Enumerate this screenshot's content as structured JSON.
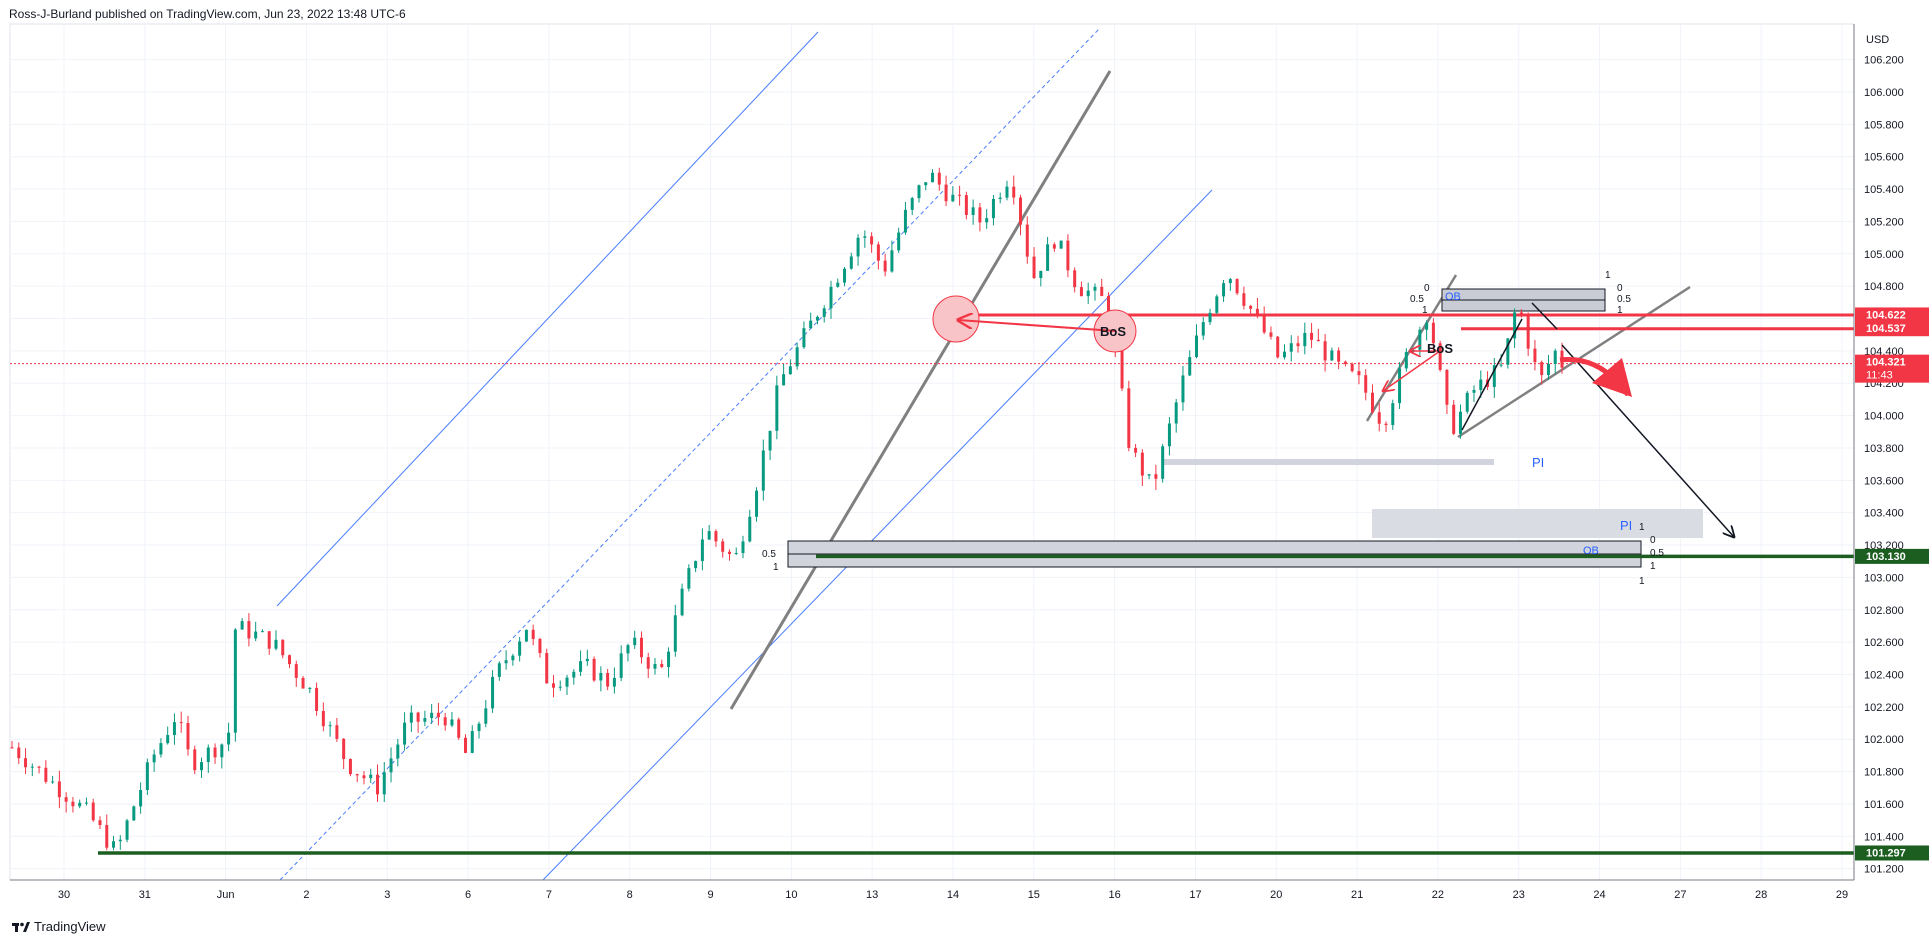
{
  "header": {
    "publish_line": "Ross-J-Burland published on TradingView.com, Jun 23, 2022 13:48 UTC-6"
  },
  "footer": {
    "brand": "TradingView",
    "logo_icon": "tradingview-logo-icon"
  },
  "colors": {
    "up": "#089981",
    "down": "#f23645",
    "resistance": "#f23645",
    "support": "#1b5e20",
    "channel": "#4a7dff",
    "trend": "#808080",
    "zone": "#d1d4dc"
  },
  "chart_data": {
    "type": "candlestick",
    "currency_label": "USD",
    "ylim": [
      101.13,
      106.42
    ],
    "y_ticks": [
      "106.200",
      "106.000",
      "105.800",
      "105.600",
      "105.400",
      "105.200",
      "105.000",
      "104.800",
      "104.600",
      "104.400",
      "104.200",
      "104.000",
      "103.800",
      "103.600",
      "103.400",
      "103.200",
      "103.000",
      "102.800",
      "102.600",
      "102.400",
      "102.200",
      "102.000",
      "101.800",
      "101.600",
      "101.400",
      "101.200"
    ],
    "x_ticks": [
      "30",
      "31",
      "Jun",
      "2",
      "3",
      "6",
      "7",
      "8",
      "9",
      "10",
      "13",
      "14",
      "15",
      "16",
      "17",
      "20",
      "21",
      "22",
      "23",
      "24",
      "27",
      "28",
      "29"
    ],
    "price_tags": [
      {
        "value": 104.622,
        "label": "104.622",
        "color": "#f23645"
      },
      {
        "value": 104.537,
        "label": "104.537",
        "color": "#f23645"
      },
      {
        "value": 104.321,
        "label": "104.321",
        "sub": "11:43",
        "color": "#f23645"
      },
      {
        "value": 103.13,
        "label": "103.130",
        "color": "#1b5e20"
      },
      {
        "value": 101.297,
        "label": "101.297",
        "color": "#1b5e20"
      }
    ],
    "horizontal_levels": [
      {
        "name": "resistance-104.622",
        "value": 104.622
      },
      {
        "name": "resistance-104.537",
        "value": 104.537
      },
      {
        "name": "support-103.130",
        "value": 103.13
      },
      {
        "name": "support-101.297",
        "value": 101.297
      }
    ],
    "price_path": [
      {
        "x": 0,
        "y": 101.95
      },
      {
        "x": 0.5,
        "y": 101.75
      },
      {
        "x": 1.0,
        "y": 101.55
      },
      {
        "x": 1.4,
        "y": 101.3
      },
      {
        "x": 1.6,
        "y": 101.55
      },
      {
        "x": 1.9,
        "y": 101.9
      },
      {
        "x": 2.2,
        "y": 102.15
      },
      {
        "x": 2.4,
        "y": 101.85
      },
      {
        "x": 2.9,
        "y": 102.0
      },
      {
        "x": 3.0,
        "y": 102.7
      },
      {
        "x": 3.5,
        "y": 102.6
      },
      {
        "x": 4.0,
        "y": 102.3
      },
      {
        "x": 4.5,
        "y": 101.85
      },
      {
        "x": 4.9,
        "y": 101.7
      },
      {
        "x": 5.3,
        "y": 102.1
      },
      {
        "x": 5.8,
        "y": 102.15
      },
      {
        "x": 6.1,
        "y": 101.9
      },
      {
        "x": 6.5,
        "y": 102.4
      },
      {
        "x": 6.9,
        "y": 102.7
      },
      {
        "x": 7.2,
        "y": 102.35
      },
      {
        "x": 7.7,
        "y": 102.45
      },
      {
        "x": 8.0,
        "y": 102.35
      },
      {
        "x": 8.3,
        "y": 102.6
      },
      {
        "x": 8.7,
        "y": 102.4
      },
      {
        "x": 9.0,
        "y": 102.9
      },
      {
        "x": 9.3,
        "y": 103.3
      },
      {
        "x": 9.7,
        "y": 103.1
      },
      {
        "x": 10.0,
        "y": 103.6
      },
      {
        "x": 10.3,
        "y": 104.2
      },
      {
        "x": 10.7,
        "y": 104.55
      },
      {
        "x": 11.0,
        "y": 104.8
      },
      {
        "x": 11.4,
        "y": 105.15
      },
      {
        "x": 11.7,
        "y": 104.9
      },
      {
        "x": 12.0,
        "y": 105.25
      },
      {
        "x": 12.3,
        "y": 105.5
      },
      {
        "x": 12.6,
        "y": 105.35
      },
      {
        "x": 13.0,
        "y": 105.2
      },
      {
        "x": 13.4,
        "y": 105.5
      },
      {
        "x": 13.7,
        "y": 104.85
      },
      {
        "x": 14.0,
        "y": 105.1
      },
      {
        "x": 14.3,
        "y": 104.8
      },
      {
        "x": 14.7,
        "y": 104.7
      },
      {
        "x": 15.0,
        "y": 103.8
      },
      {
        "x": 15.3,
        "y": 103.55
      },
      {
        "x": 15.7,
        "y": 104.2
      },
      {
        "x": 16.0,
        "y": 104.6
      },
      {
        "x": 16.3,
        "y": 104.9
      },
      {
        "x": 16.7,
        "y": 104.6
      },
      {
        "x": 17.0,
        "y": 104.35
      },
      {
        "x": 17.4,
        "y": 104.5
      },
      {
        "x": 17.8,
        "y": 104.3
      },
      {
        "x": 18.1,
        "y": 104.2
      },
      {
        "x": 18.4,
        "y": 103.95
      },
      {
        "x": 18.7,
        "y": 104.35
      },
      {
        "x": 19.0,
        "y": 104.65
      },
      {
        "x": 19.3,
        "y": 103.9
      },
      {
        "x": 19.6,
        "y": 104.15
      },
      {
        "x": 20.0,
        "y": 104.3
      },
      {
        "x": 20.2,
        "y": 104.7
      },
      {
        "x": 20.5,
        "y": 104.2
      },
      {
        "x": 20.7,
        "y": 104.4
      },
      {
        "x": 20.8,
        "y": 104.321
      }
    ]
  },
  "annotations": {
    "bos_labels": [
      "BoS",
      "BoS"
    ],
    "ob_labels": [
      "OB",
      "OB"
    ],
    "pi_labels": [
      "PI",
      "PI"
    ],
    "fib_levels": [
      "0",
      "0.5",
      "1"
    ]
  }
}
